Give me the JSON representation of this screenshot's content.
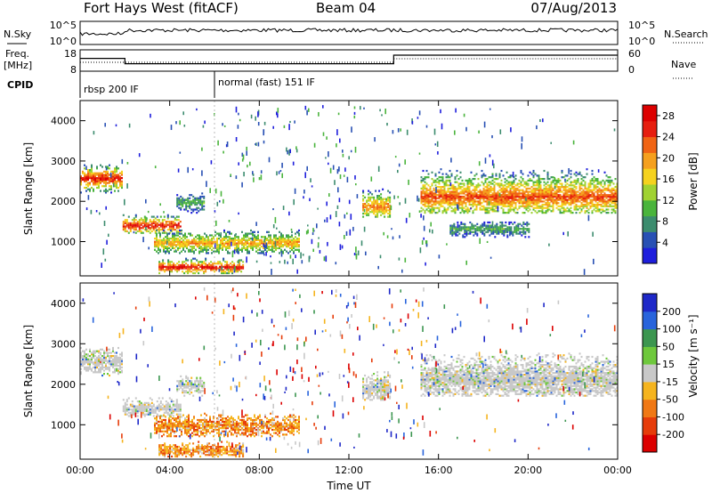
{
  "header": {
    "title": "Fort Hays West (fitACF)",
    "beam": "Beam 04",
    "date": "07/Aug/2013"
  },
  "top_panels": {
    "nsky_label": "N.Sky",
    "nsearch_label": "N.Search",
    "nsky_ticks": [
      "10^5",
      "10^0"
    ],
    "nsearch_ticks": [
      "10^5",
      "10^0"
    ],
    "freq_label": "Freq.",
    "freq_unit": "[MHz]",
    "freq_ticks": [
      "18",
      "8"
    ],
    "nave_label": "Nave",
    "nave_ticks": [
      "60",
      "0"
    ],
    "cpid_label": "CPID",
    "cpid_segments": [
      {
        "label": "rbsp 200 IF",
        "start_hour": 0,
        "end_hour": 6
      },
      {
        "label": "normal (fast) 151 IF",
        "start_hour": 6,
        "end_hour": 24
      }
    ]
  },
  "chart_data": [
    {
      "type": "heatmap",
      "name": "power",
      "ylabel": "Slant Range [km]",
      "xlabel": "Time UT",
      "xlim": [
        0,
        24
      ],
      "ylim": [
        150,
        4500
      ],
      "x_ticks": [
        "00:00",
        "04:00",
        "08:00",
        "12:00",
        "16:00",
        "20:00",
        "00:00"
      ],
      "y_ticks": [
        1000,
        2000,
        3000,
        4000
      ],
      "colorbar": {
        "label": "Power [dB]",
        "range": [
          0,
          30
        ],
        "ticks": [
          4,
          8,
          12,
          16,
          20,
          24,
          28
        ],
        "colors": [
          "#1e1edc",
          "#2850b4",
          "#3c8c6e",
          "#4ab43c",
          "#a0d232",
          "#f5d21e",
          "#f5a01e",
          "#f06414",
          "#e61e0f",
          "#dc0000"
        ]
      },
      "regions": [
        {
          "t0": 0.0,
          "t1": 1.9,
          "r0": 2200,
          "r1": 2900,
          "center": 2550,
          "peak_db": 27
        },
        {
          "t0": 1.9,
          "t1": 4.5,
          "r0": 1200,
          "r1": 1700,
          "center": 1380,
          "peak_db": 28
        },
        {
          "t0": 4.3,
          "t1": 5.5,
          "r0": 1700,
          "r1": 2200,
          "center": 1950,
          "peak_db": 10
        },
        {
          "t0": 3.3,
          "t1": 9.8,
          "r0": 700,
          "r1": 1300,
          "center": 950,
          "peak_db": 20
        },
        {
          "t0": 3.5,
          "t1": 7.3,
          "r0": 200,
          "r1": 600,
          "center": 350,
          "peak_db": 28
        },
        {
          "t0": 12.6,
          "t1": 13.8,
          "r0": 1600,
          "r1": 2400,
          "center": 1850,
          "peak_db": 22
        },
        {
          "t0": 15.2,
          "t1": 24.0,
          "r0": 1700,
          "r1": 2900,
          "center": 2100,
          "peak_db": 24
        },
        {
          "t0": 16.5,
          "t1": 20.0,
          "r0": 1100,
          "r1": 1500,
          "center": 1300,
          "peak_db": 10
        }
      ]
    },
    {
      "type": "heatmap",
      "name": "velocity",
      "ylabel": "Slant Range [km]",
      "xlabel": "Time UT",
      "xlim": [
        0,
        24
      ],
      "ylim": [
        150,
        4500
      ],
      "x_ticks": [
        "00:00",
        "04:00",
        "08:00",
        "12:00",
        "16:00",
        "20:00",
        "00:00"
      ],
      "y_ticks": [
        1000,
        2000,
        3000,
        4000
      ],
      "colorbar": {
        "label": "Velocity [m s⁻¹]",
        "tick_labels": [
          "200",
          "100",
          "50",
          "15",
          "-15",
          "-50",
          "-100",
          "-200"
        ],
        "colors": [
          "#1e28c8",
          "#2864dc",
          "#3c9650",
          "#6ec83c",
          "#c8c8c8",
          "#f5b41e",
          "#f07814",
          "#e63c0a",
          "#dc0000"
        ]
      },
      "regions": [
        {
          "t0": 0.0,
          "t1": 1.9,
          "r0": 2200,
          "r1": 2900,
          "center": 2550,
          "kind": "gray"
        },
        {
          "t0": 1.9,
          "t1": 4.5,
          "r0": 1200,
          "r1": 1700,
          "center": 1380,
          "kind": "gray"
        },
        {
          "t0": 4.3,
          "t1": 5.5,
          "r0": 1700,
          "r1": 2200,
          "center": 1950,
          "kind": "gray"
        },
        {
          "t0": 3.3,
          "t1": 9.8,
          "r0": 700,
          "r1": 1300,
          "center": 950,
          "kind": "warm"
        },
        {
          "t0": 3.5,
          "t1": 7.3,
          "r0": 200,
          "r1": 600,
          "center": 350,
          "kind": "warm"
        },
        {
          "t0": 12.6,
          "t1": 13.8,
          "r0": 1600,
          "r1": 2400,
          "center": 1850,
          "kind": "gray"
        },
        {
          "t0": 15.2,
          "t1": 24.0,
          "r0": 1700,
          "r1": 2900,
          "center": 2100,
          "kind": "gray"
        }
      ]
    }
  ]
}
